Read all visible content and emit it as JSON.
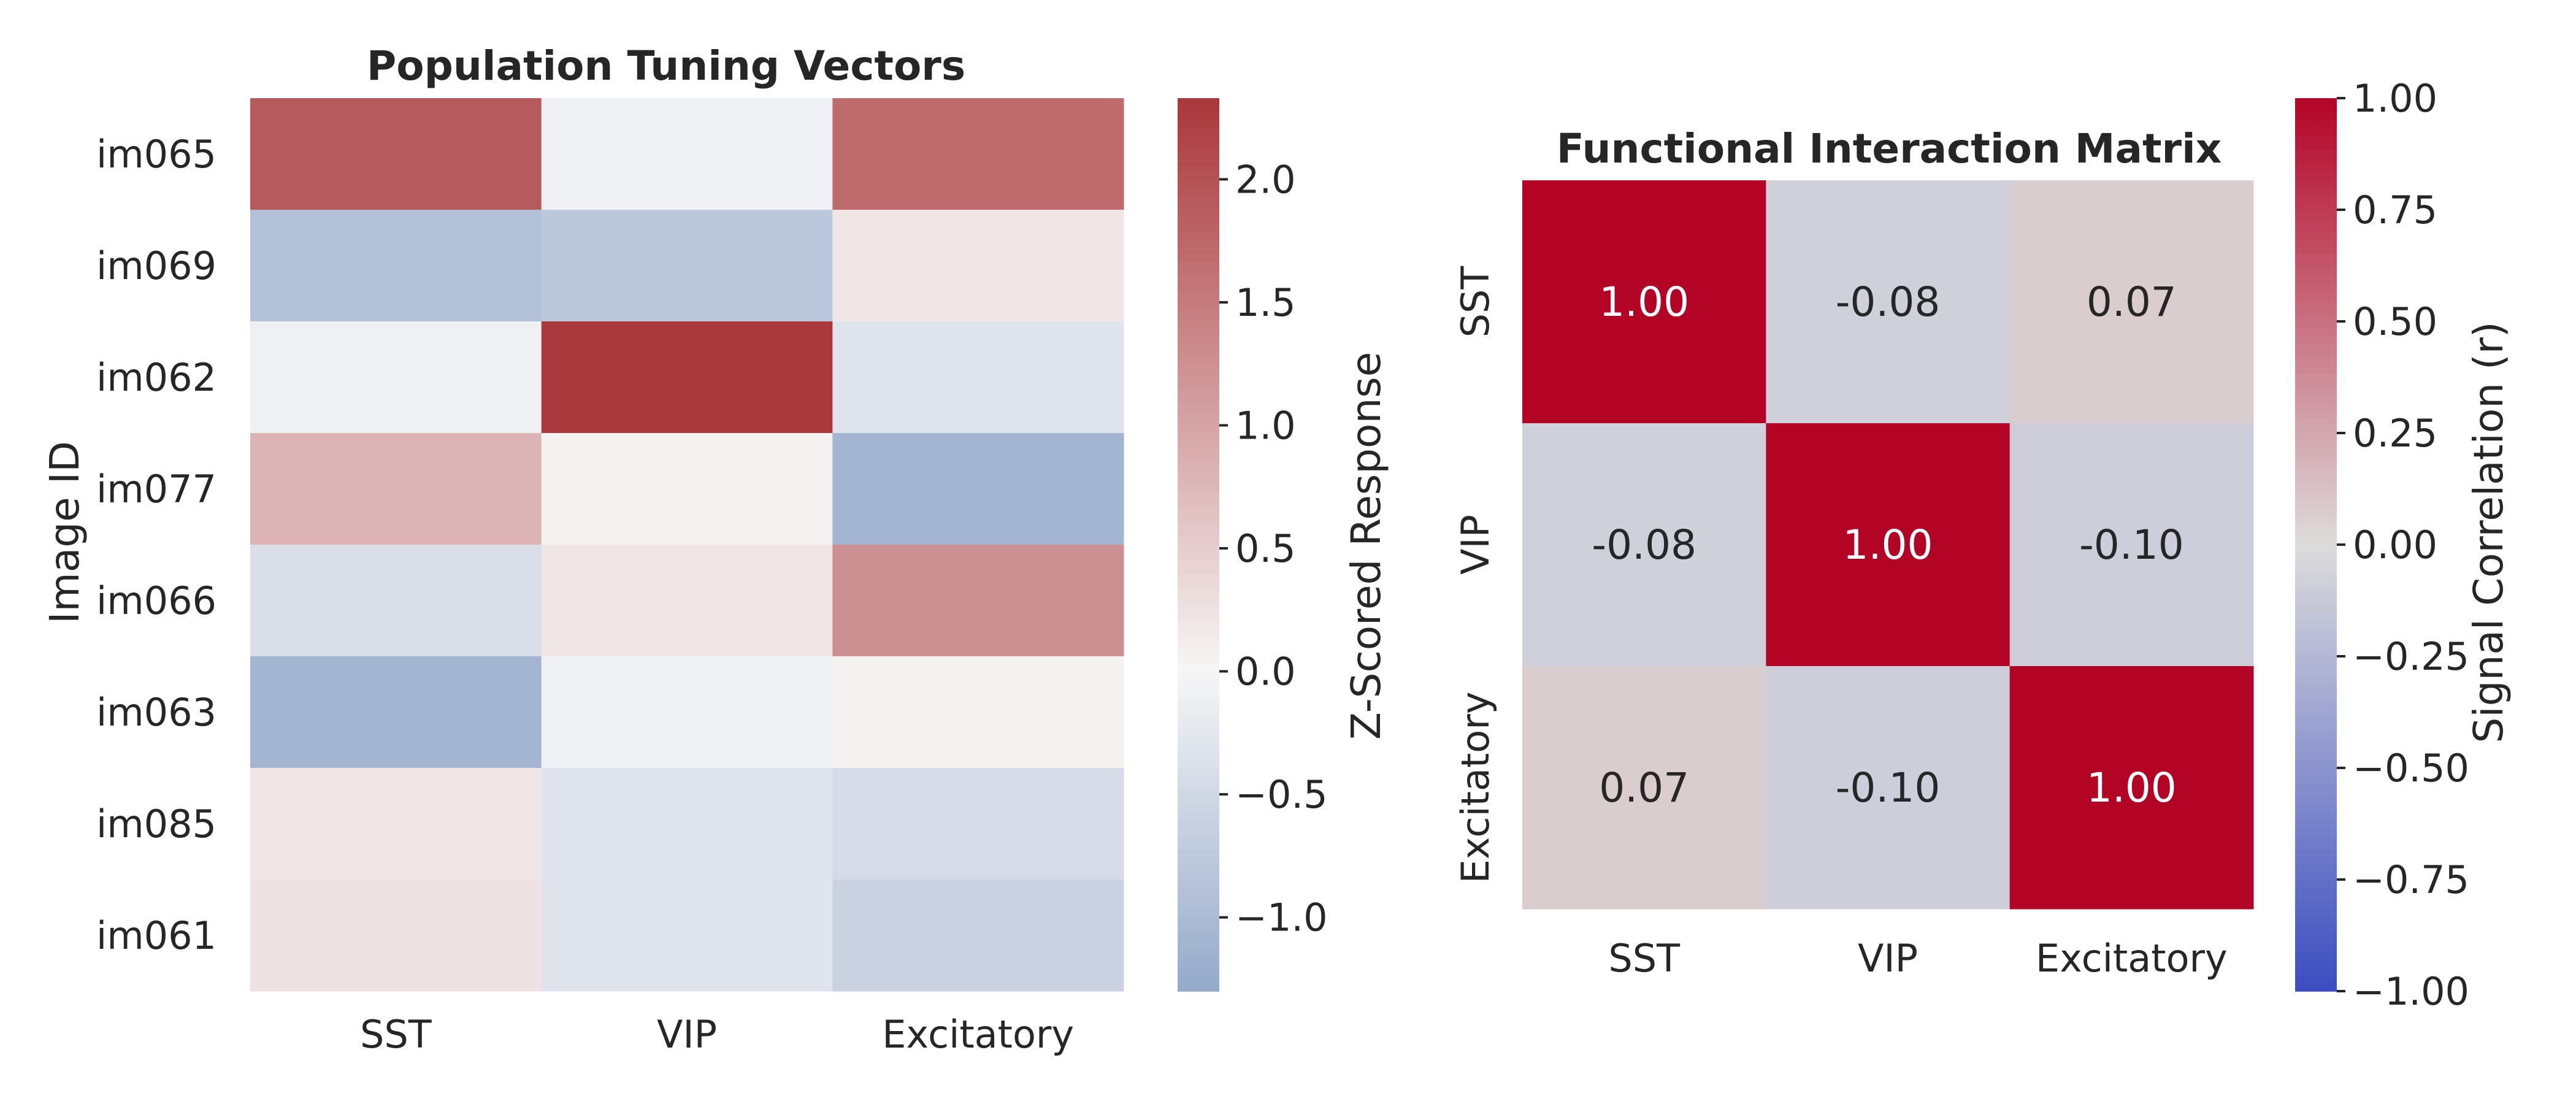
{
  "chart_data": [
    {
      "type": "heatmap",
      "title": "Population Tuning Vectors",
      "ylabel": "Image ID",
      "xlabel": "",
      "columns": [
        "SST",
        "VIP",
        "Excitatory"
      ],
      "rows": [
        "im065",
        "im069",
        "im062",
        "im077",
        "im066",
        "im063",
        "im085",
        "im061"
      ],
      "values": [
        [
          1.9,
          -0.1,
          1.7
        ],
        [
          -0.9,
          -0.8,
          0.2
        ],
        [
          -0.1,
          2.3,
          -0.3
        ],
        [
          0.8,
          0.05,
          -1.1
        ],
        [
          -0.4,
          0.2,
          1.25
        ],
        [
          -1.1,
          -0.1,
          0.05
        ],
        [
          0.2,
          -0.3,
          -0.45
        ],
        [
          0.25,
          -0.3,
          -0.6
        ]
      ],
      "colorbar": {
        "label": "Z-Scored Response",
        "vmin": -1.3,
        "vmax": 2.33,
        "ticks": [
          -1.0,
          -0.5,
          0.0,
          0.5,
          1.0,
          1.5,
          2.0
        ],
        "tick_labels": [
          "−1.0",
          "−0.5",
          "0.0",
          "0.5",
          "1.0",
          "1.5",
          "2.0"
        ],
        "colormap": "vlag",
        "colors": {
          "low": "#95a9ca",
          "mid": "#f7f6f6",
          "high": "#a9373b"
        }
      }
    },
    {
      "type": "heatmap",
      "title": "Functional Interaction Matrix",
      "columns": [
        "SST",
        "VIP",
        "Excitatory"
      ],
      "rows": [
        "SST",
        "VIP",
        "Excitatory"
      ],
      "values": [
        [
          1.0,
          -0.08,
          0.07
        ],
        [
          -0.08,
          1.0,
          -0.1
        ],
        [
          0.07,
          -0.1,
          1.0
        ]
      ],
      "annotations": [
        [
          "1.00",
          "-0.08",
          "0.07"
        ],
        [
          "-0.08",
          "1.00",
          "-0.10"
        ],
        [
          "0.07",
          "-0.10",
          "1.00"
        ]
      ],
      "colorbar": {
        "label": "Signal Correlation (r)",
        "vmin": -1.0,
        "vmax": 1.0,
        "ticks": [
          -1.0,
          -0.75,
          -0.5,
          -0.25,
          0.0,
          0.25,
          0.5,
          0.75,
          1.0
        ],
        "tick_labels": [
          "−1.00",
          "−0.75",
          "−0.50",
          "−0.25",
          "0.00",
          "0.25",
          "0.50",
          "0.75",
          "1.00"
        ],
        "colormap": "coolwarm",
        "colors": {
          "low": "#3b4cc0",
          "mid": "#dddcdc",
          "high": "#b40426"
        }
      }
    }
  ]
}
